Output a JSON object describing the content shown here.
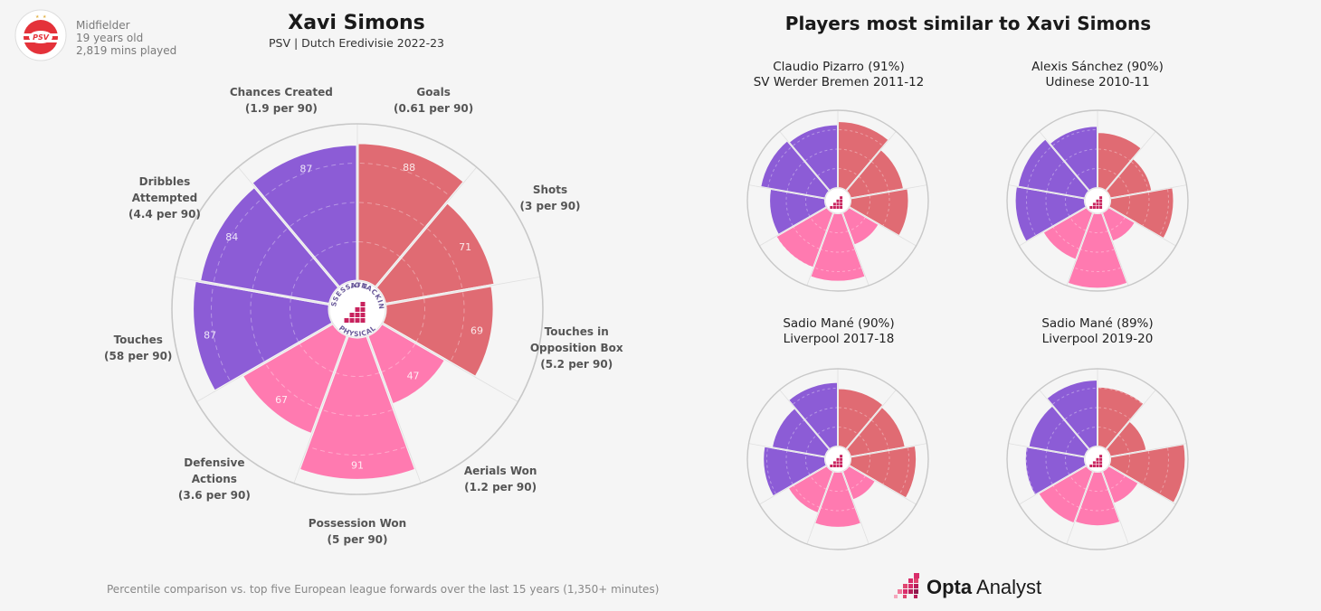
{
  "player": {
    "position": "Midfielder",
    "age": "19 years old",
    "minutes": "2,819 mins played",
    "club_badge": "PSV",
    "name": "Xavi Simons",
    "subtitle": "PSV | Dutch Eredivisie 2022-23"
  },
  "inner_labels": [
    "POSSESSION",
    "ATTACKING",
    "PHYSICAL"
  ],
  "colors": {
    "attacking": "#e06b73",
    "possession": "#8c5cd6",
    "physical": "#ff7ab0"
  },
  "chart_data": {
    "type": "pie",
    "variant": "polar-area (pizza)",
    "range": [
      0,
      100
    ],
    "metrics": [
      {
        "label_lines": [
          "Goals",
          "(0.61 per 90)"
        ],
        "percentile": 88,
        "group": "attacking"
      },
      {
        "label_lines": [
          "Shots",
          "(3 per 90)"
        ],
        "percentile": 71,
        "group": "attacking"
      },
      {
        "label_lines": [
          "Touches in",
          "Opposition Box",
          "(5.2 per 90)"
        ],
        "percentile": 69,
        "group": "attacking"
      },
      {
        "label_lines": [
          "Aerials Won",
          "(1.2 per 90)"
        ],
        "percentile": 47,
        "group": "physical"
      },
      {
        "label_lines": [
          "Possession Won",
          "(5 per 90)"
        ],
        "percentile": 91,
        "group": "physical"
      },
      {
        "label_lines": [
          "Defensive",
          "Actions",
          "(3.6 per 90)"
        ],
        "percentile": 67,
        "group": "physical"
      },
      {
        "label_lines": [
          "Touches",
          "(58 per 90)"
        ],
        "percentile": 87,
        "group": "possession"
      },
      {
        "label_lines": [
          "Dribbles",
          "Attempted",
          "(4.4 per 90)"
        ],
        "percentile": 84,
        "group": "possession"
      },
      {
        "label_lines": [
          "Chances Created",
          "(1.9 per 90)"
        ],
        "percentile": 87,
        "group": "possession"
      }
    ]
  },
  "similar": {
    "title": "Players most similar to Xavi Simons",
    "players": [
      {
        "line1": "Claudio Pizarro (91%)",
        "line2": "SV Werder Bremen 2011-12",
        "values": [
          86,
          70,
          75,
          45,
          88,
          76,
          72,
          85,
          82
        ]
      },
      {
        "line1": "Alexis Sánchez (90%)",
        "line2": "Udinese 2010-11",
        "values": [
          72,
          55,
          82,
          40,
          97,
          65,
          90,
          88,
          80
        ]
      },
      {
        "line1": "Sadio Mané (90%)",
        "line2": "Liverpool 2017-18",
        "values": [
          75,
          72,
          85,
          40,
          72,
          58,
          80,
          70,
          83
        ]
      },
      {
        "line1": "Sadio Mané (89%)",
        "line2": "Liverpool 2019-20",
        "values": [
          77,
          48,
          97,
          45,
          70,
          72,
          77,
          74,
          86
        ]
      }
    ]
  },
  "footer": "Percentile comparison vs. top five European league forwards over the last 15 years (1,350+ minutes)",
  "brand": {
    "name_bold": "Opta",
    "name_light": " Analyst"
  }
}
